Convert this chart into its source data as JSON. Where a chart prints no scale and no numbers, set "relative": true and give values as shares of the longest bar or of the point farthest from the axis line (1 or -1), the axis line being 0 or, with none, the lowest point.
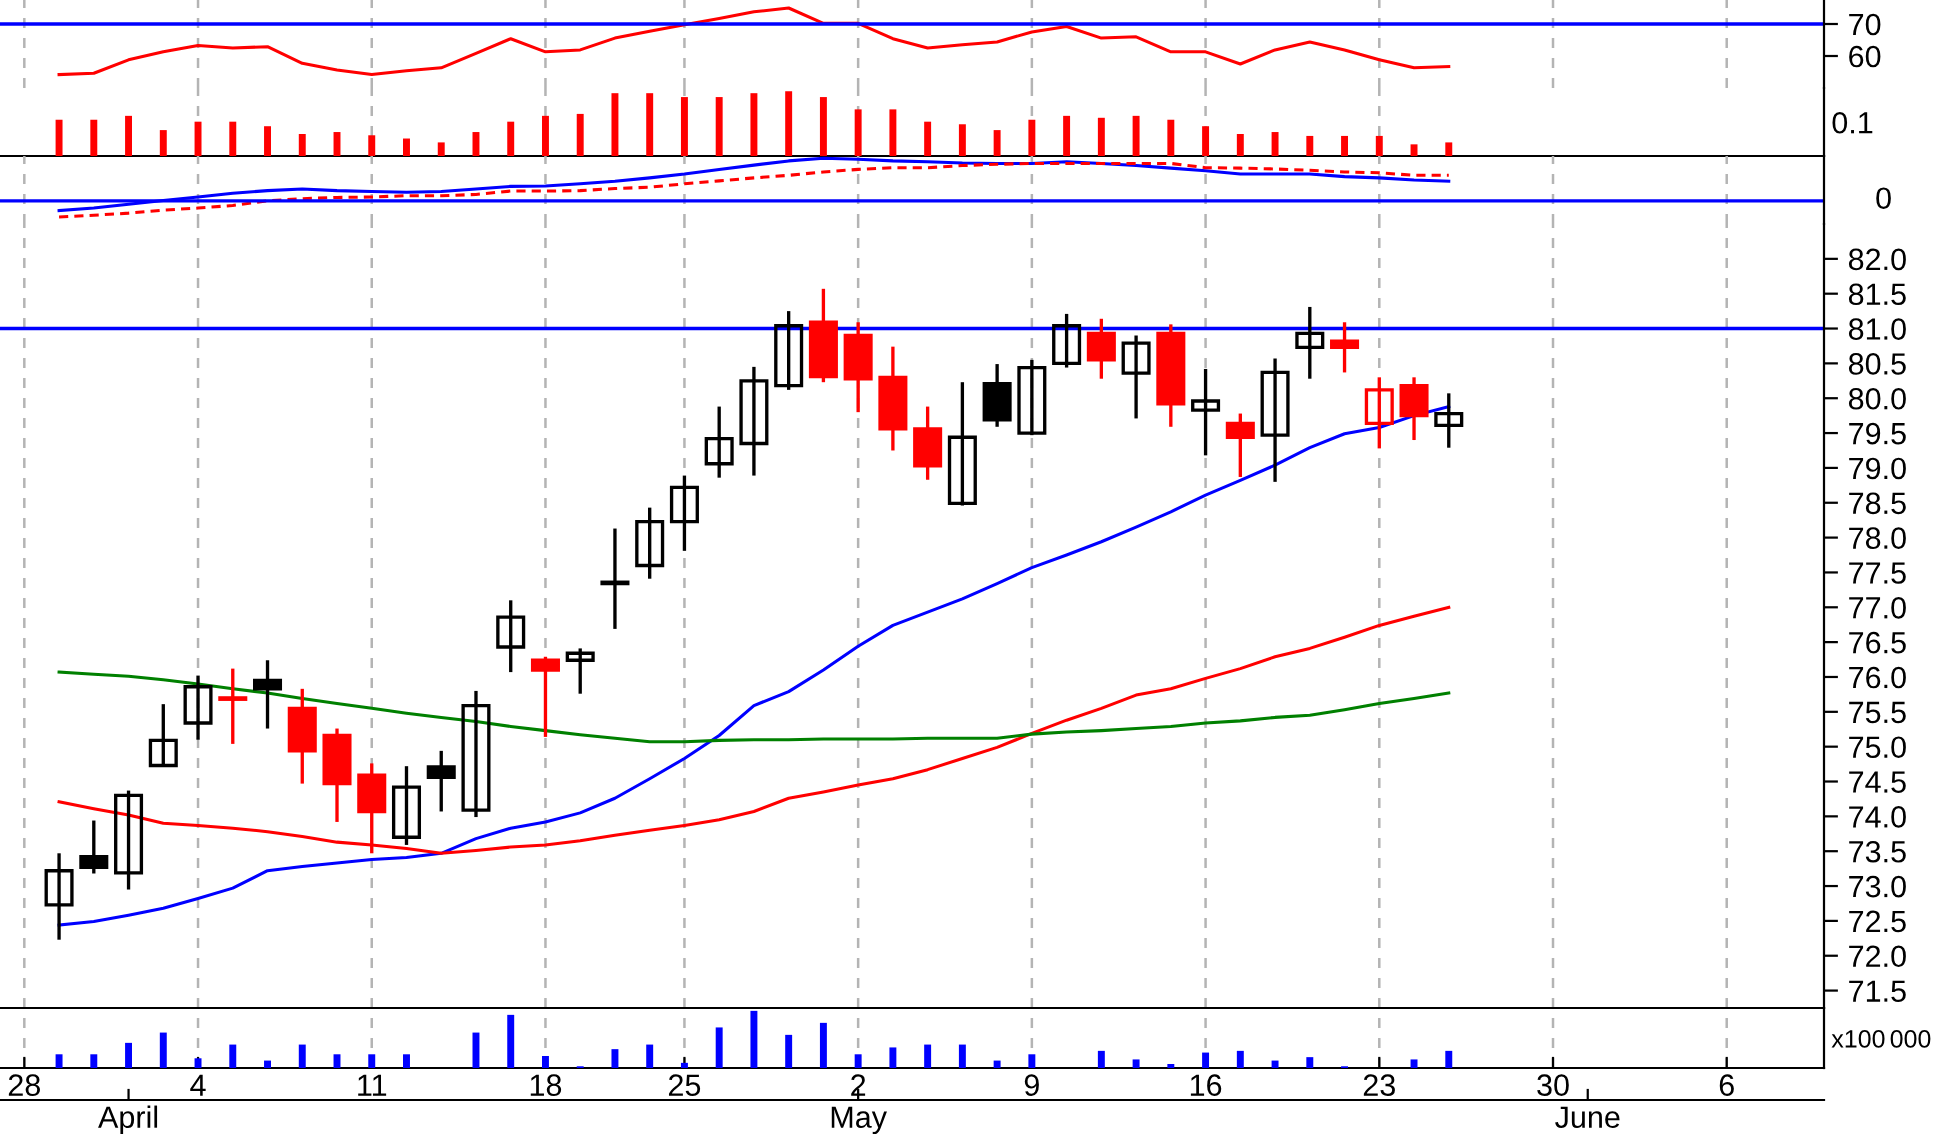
{
  "chart_data": [
    {
      "type": "line",
      "ylim": [
        50,
        77.5
      ],
      "yticks": [
        60,
        70
      ],
      "tick_labels": "y",
      "grid": "x",
      "categories": [
        "28",
        null,
        null,
        null,
        null,
        "4",
        null,
        null,
        null,
        null,
        "11",
        null,
        null,
        null,
        null,
        "18",
        null,
        null,
        null,
        "25",
        null,
        null,
        null,
        null,
        "2",
        null,
        null,
        null,
        null,
        "9",
        null,
        null,
        null,
        null,
        "16",
        null,
        null,
        null,
        null,
        "23",
        null,
        null,
        null,
        null,
        "30",
        null,
        null,
        null,
        null,
        "6",
        null,
        null,
        null
      ],
      "ref_lines": [
        {
          "axis": "y",
          "value": 70,
          "label": null,
          "color": "#0000ff"
        }
      ],
      "series": [
        {
          "color": "#ff0000",
          "values": [
            null,
            54.2,
            54.6,
            58.8,
            61.3,
            63.3,
            62.5,
            62.9,
            57.7,
            55.6,
            54.2,
            55.4,
            56.3,
            60.8,
            65.4,
            61.3,
            61.9,
            65.6,
            67.7,
            69.8,
            71.7,
            73.8,
            75.0,
            70.2,
            70.2,
            65.4,
            62.5,
            63.5,
            64.4,
            67.5,
            69.2,
            65.6,
            66.0,
            61.3,
            61.3,
            57.5,
            61.9,
            64.4,
            61.9,
            58.8,
            56.3,
            56.7,
            null,
            null,
            null,
            null,
            null,
            null,
            null,
            null,
            null,
            null,
            null
          ]
        }
      ]
    },
    {
      "type": "bar",
      "relative": true,
      "tick_labels": false,
      "grid": "x",
      "categories": [
        null,
        null,
        null,
        null,
        "4",
        null,
        null,
        null,
        null,
        "11",
        null,
        null,
        null,
        null,
        "18",
        null,
        null,
        null,
        "25",
        null,
        null,
        null,
        null,
        "2",
        null,
        null,
        null,
        null,
        "9",
        null,
        null,
        null,
        null,
        "16",
        null,
        null,
        null,
        null,
        "23",
        null,
        null
      ],
      "annotations": [
        "0.1"
      ],
      "series": [
        {
          "color": "#ff0000",
          "values": [
            0.56,
            0.56,
            0.62,
            0.4,
            0.53,
            0.53,
            0.46,
            0.34,
            0.37,
            0.32,
            0.27,
            0.21,
            0.37,
            0.53,
            0.62,
            0.65,
            0.97,
            0.97,
            0.91,
            0.91,
            0.97,
            1,
            0.91,
            0.72,
            0.72,
            0.53,
            0.49,
            0.4,
            0.56,
            0.62,
            0.59,
            0.62,
            0.56,
            0.46,
            0.34,
            0.37,
            0.31,
            0.31,
            0.31,
            0.18,
            0.21
          ]
        }
      ]
    },
    {
      "type": "line",
      "relative": true,
      "tick_labels": false,
      "grid": "x",
      "categories": [
        "28",
        null,
        null,
        null,
        null,
        "4",
        null,
        null,
        null,
        null,
        "11",
        null,
        null,
        null,
        null,
        "18",
        null,
        null,
        null,
        "25",
        null,
        null,
        null,
        null,
        "2",
        null,
        null,
        null,
        null,
        "9",
        null,
        null,
        null,
        null,
        "16",
        null,
        null,
        null,
        null,
        "23",
        null,
        null,
        null,
        null,
        "30",
        null,
        null,
        null,
        null,
        "6",
        null,
        null,
        null
      ],
      "ref_lines": [
        {
          "axis": "y",
          "value": 0,
          "label": "0",
          "color": "#0000ff"
        }
      ],
      "series": [
        {
          "color": "#0000ff",
          "line_style": "solid",
          "values": [
            null,
            -0.23,
            -0.17,
            -0.08,
            0.01,
            0.09,
            0.18,
            0.24,
            0.28,
            0.24,
            0.22,
            0.2,
            0.22,
            0.28,
            0.34,
            0.35,
            0.4,
            0.46,
            0.54,
            0.63,
            0.74,
            0.84,
            0.94,
            1,
            0.98,
            0.94,
            0.92,
            0.89,
            0.88,
            0.88,
            0.92,
            0.88,
            0.83,
            0.77,
            0.71,
            0.63,
            0.63,
            0.63,
            0.57,
            0.54,
            0.49,
            0.46,
            null,
            null,
            null,
            null,
            null,
            null,
            null,
            null,
            null,
            null,
            null
          ]
        },
        {
          "color": "#ff0000",
          "line_style": "dashed",
          "values": [
            null,
            -0.38,
            -0.34,
            -0.29,
            -0.22,
            -0.17,
            -0.11,
            0,
            0.05,
            0.08,
            0.09,
            0.12,
            0.12,
            0.15,
            0.23,
            0.23,
            0.24,
            0.29,
            0.32,
            0.4,
            0.47,
            0.54,
            0.6,
            0.68,
            0.74,
            0.78,
            0.78,
            0.83,
            0.86,
            0.88,
            0.88,
            0.88,
            0.88,
            0.88,
            0.78,
            0.77,
            0.75,
            0.72,
            0.68,
            0.66,
            0.6,
            0.6,
            null,
            null,
            null,
            null,
            null,
            null,
            null,
            null,
            null,
            null,
            null
          ]
        }
      ]
    },
    {
      "type": "candlestick",
      "ylim": [
        71.25,
        82.5
      ],
      "tick_labels": "y",
      "grid": "x",
      "yticks": [
        {
          "value": 71.5,
          "label": "71.5"
        },
        {
          "value": 72,
          "label": "72.0"
        },
        {
          "value": 72.5,
          "label": "72.5"
        },
        {
          "value": 73,
          "label": "73.0"
        },
        {
          "value": 73.5,
          "label": "73.5"
        },
        {
          "value": 74,
          "label": "74.0"
        },
        {
          "value": 74.5,
          "label": "74.5"
        },
        {
          "value": 75,
          "label": "75.0"
        },
        {
          "value": 75.5,
          "label": "75.5"
        },
        {
          "value": 76,
          "label": "76.0"
        },
        {
          "value": 76.5,
          "label": "76.5"
        },
        {
          "value": 77,
          "label": "77.0"
        },
        {
          "value": 77.5,
          "label": "77.5"
        },
        {
          "value": 78,
          "label": "78.0"
        },
        {
          "value": 78.5,
          "label": "78.5"
        },
        {
          "value": 79,
          "label": "79.0"
        },
        {
          "value": 79.5,
          "label": "79.5"
        },
        {
          "value": 80,
          "label": "80.0"
        },
        {
          "value": 80.5,
          "label": "80.5"
        },
        {
          "value": 81,
          "label": "81.0"
        },
        {
          "value": 81.5,
          "label": "81.5"
        },
        {
          "value": 82,
          "label": "82.0"
        }
      ],
      "categories": [
        "28",
        null,
        null,
        null,
        null,
        "4",
        null,
        null,
        null,
        null,
        "11",
        null,
        null,
        null,
        null,
        "18",
        null,
        null,
        null,
        "25",
        null,
        null,
        null,
        null,
        "2",
        null,
        null,
        null,
        null,
        "9",
        null,
        null,
        null,
        null,
        "16",
        null,
        null,
        null,
        null,
        "23",
        null,
        null,
        null,
        null,
        "30",
        null,
        null,
        null,
        null,
        "6",
        null,
        null,
        null
      ],
      "ohlc": [
        null,
        [
          72.73,
          73.47,
          72.23,
          73.22
        ],
        [
          73.42,
          73.94,
          73.18,
          73.27
        ],
        [
          73.19,
          74.37,
          72.95,
          74.3
        ],
        [
          74.73,
          75.61,
          74.73,
          75.09
        ],
        [
          75.34,
          76.02,
          75.1,
          75.86
        ],
        [
          75.7,
          76.12,
          75.04,
          75.68
        ],
        [
          75.95,
          76.24,
          75.26,
          75.83
        ],
        [
          75.55,
          75.83,
          74.47,
          74.94
        ],
        [
          75.16,
          75.26,
          73.92,
          74.47
        ],
        [
          74.59,
          74.76,
          73.47,
          74.07
        ],
        [
          73.7,
          74.72,
          73.59,
          74.42
        ],
        [
          74.71,
          74.94,
          74.07,
          74.56
        ],
        [
          74.09,
          75.8,
          73.99,
          75.59
        ],
        [
          76.43,
          77.1,
          76.07,
          76.86
        ],
        [
          76.24,
          76.29,
          75.14,
          76.1
        ],
        [
          76.24,
          76.41,
          75.76,
          76.34
        ],
        [
          77.34,
          78.13,
          76.69,
          77.34
        ],
        [
          77.6,
          78.43,
          77.41,
          78.23
        ],
        [
          78.23,
          78.89,
          77.81,
          78.72
        ],
        [
          79.06,
          79.88,
          78.86,
          79.42
        ],
        [
          79.35,
          80.45,
          78.89,
          80.25
        ],
        [
          80.18,
          81.25,
          80.12,
          81.04
        ],
        [
          81.09,
          81.57,
          80.23,
          80.31
        ],
        [
          80.9,
          81.09,
          79.8,
          80.28
        ],
        [
          80.3,
          80.74,
          79.25,
          79.56
        ],
        [
          79.56,
          79.88,
          78.83,
          79.03
        ],
        [
          78.49,
          80.23,
          78.46,
          79.44
        ],
        [
          80.21,
          80.49,
          79.59,
          79.69
        ],
        [
          79.5,
          80.55,
          79.47,
          80.44
        ],
        [
          80.5,
          81.21,
          80.44,
          81.04
        ],
        [
          80.93,
          81.14,
          80.28,
          80.55
        ],
        [
          80.36,
          80.9,
          79.71,
          80.79
        ],
        [
          80.93,
          81.06,
          79.59,
          79.92
        ],
        [
          79.83,
          80.42,
          79.18,
          79.96
        ],
        [
          79.64,
          79.78,
          78.87,
          79.44
        ],
        [
          79.47,
          80.57,
          78.8,
          80.37
        ],
        [
          80.73,
          81.31,
          80.28,
          80.93
        ],
        [
          80.82,
          81.09,
          80.37,
          80.73
        ],
        [
          79.64,
          80.3,
          79.28,
          80.12
        ],
        [
          80.18,
          80.3,
          79.4,
          79.75
        ],
        [
          79.61,
          80.07,
          79.29,
          79.78
        ],
        null,
        null,
        null,
        null,
        null,
        null,
        null,
        null,
        null,
        null,
        null
      ],
      "colors": [
        null,
        "#000000",
        "#000000",
        "#000000",
        "#000000",
        "#000000",
        "#ff0000",
        "#000000",
        "#ff0000",
        "#ff0000",
        "#ff0000",
        "#000000",
        "#000000",
        "#000000",
        "#000000",
        "#ff0000",
        "#000000",
        "#000000",
        "#000000",
        "#000000",
        "#000000",
        "#000000",
        "#000000",
        "#ff0000",
        "#ff0000",
        "#ff0000",
        "#ff0000",
        "#000000",
        "#000000",
        "#000000",
        "#000000",
        "#ff0000",
        "#000000",
        "#ff0000",
        "#000000",
        "#ff0000",
        "#000000",
        "#000000",
        "#ff0000",
        "#ff0000",
        "#ff0000",
        "#000000",
        null,
        null,
        null,
        null,
        null,
        null,
        null,
        null,
        null,
        null,
        null
      ],
      "ref_lines": [
        {
          "axis": "y",
          "value": 81,
          "label": null,
          "color": "#0000ff"
        }
      ],
      "series": [
        {
          "type": "line",
          "color": "#0000ff",
          "values": [
            null,
            72.44,
            72.49,
            72.58,
            72.68,
            72.82,
            72.97,
            73.22,
            73.28,
            73.33,
            73.38,
            73.41,
            73.47,
            73.68,
            73.83,
            73.92,
            74.05,
            74.26,
            74.54,
            74.83,
            75.16,
            75.59,
            75.79,
            76.1,
            76.44,
            76.74,
            76.93,
            77.12,
            77.34,
            77.57,
            77.75,
            77.94,
            78.15,
            78.37,
            78.61,
            78.82,
            79.04,
            79.29,
            79.49,
            79.58,
            79.75,
            79.88,
            null,
            null,
            null,
            null,
            null,
            null,
            null,
            null,
            null,
            null,
            null
          ]
        },
        {
          "type": "line",
          "color": "#ff0000",
          "values": [
            null,
            74.21,
            74.11,
            74.02,
            73.9,
            73.87,
            73.83,
            73.78,
            73.71,
            73.63,
            73.59,
            73.54,
            73.47,
            73.51,
            73.56,
            73.59,
            73.65,
            73.73,
            73.8,
            73.87,
            73.95,
            74.07,
            74.26,
            74.35,
            74.45,
            74.54,
            74.67,
            74.83,
            74.99,
            75.19,
            75.38,
            75.55,
            75.74,
            75.83,
            75.98,
            76.12,
            76.29,
            76.41,
            76.57,
            76.74,
            76.87,
            77.0,
            null,
            null,
            null,
            null,
            null,
            null,
            null,
            null,
            null,
            null,
            null
          ]
        },
        {
          "type": "line",
          "color": "#008000",
          "values": [
            null,
            76.07,
            76.04,
            76.01,
            75.96,
            75.9,
            75.83,
            75.77,
            75.69,
            75.62,
            75.55,
            75.48,
            75.42,
            75.36,
            75.29,
            75.23,
            75.17,
            75.12,
            75.07,
            75.07,
            75.09,
            75.1,
            75.1,
            75.11,
            75.11,
            75.11,
            75.12,
            75.12,
            75.12,
            75.18,
            75.21,
            75.23,
            75.26,
            75.29,
            75.34,
            75.37,
            75.42,
            75.45,
            75.53,
            75.62,
            75.69,
            75.77,
            null,
            null,
            null,
            null,
            null,
            null,
            null,
            null,
            null,
            null,
            null
          ]
        }
      ]
    },
    {
      "type": "bar",
      "relative": true,
      "tick_labels": "x",
      "grid": "x",
      "categories": [
        "28",
        null,
        null,
        null,
        null,
        "4",
        null,
        null,
        null,
        null,
        "11",
        null,
        null,
        null,
        null,
        "18",
        null,
        null,
        null,
        "25",
        null,
        null,
        null,
        null,
        "2",
        null,
        null,
        null,
        null,
        "9",
        null,
        null,
        null,
        null,
        "16",
        null,
        null,
        null,
        null,
        "23",
        null,
        null,
        null,
        null,
        "30",
        null,
        null,
        null,
        null,
        "6",
        null,
        null,
        null
      ],
      "annotations": [
        "x100",
        "000"
      ],
      "series": [
        {
          "color": "#0000ff",
          "values": [
            null,
            0.24,
            0.24,
            0.44,
            0.62,
            0.17,
            0.41,
            0.13,
            0.41,
            0.24,
            0.24,
            0.24,
            0,
            0.62,
            0.93,
            0.21,
            0.03,
            0.33,
            0.41,
            0.09,
            0.71,
            1,
            0.58,
            0.79,
            0.24,
            0.36,
            0.41,
            0.41,
            0.13,
            0.24,
            0,
            0.3,
            0.15,
            0.07,
            0.27,
            0.3,
            0.13,
            0.19,
            0.03,
            0,
            0.15,
            0.3,
            null,
            null,
            null,
            null,
            null,
            null,
            null,
            null,
            null,
            null,
            null
          ]
        }
      ]
    },
    {
      "type": "other",
      "categories": [
        null,
        null,
        null,
        "April",
        null,
        null,
        null,
        null,
        null,
        null,
        null,
        null,
        null,
        null,
        null,
        null,
        null,
        null,
        null,
        null,
        null,
        null,
        null,
        null,
        "May",
        null,
        null,
        null,
        null,
        null,
        null,
        null,
        null,
        null,
        null,
        null,
        null,
        null,
        null,
        null,
        null,
        null,
        null,
        null,
        null,
        "June",
        null,
        null,
        null,
        null,
        null,
        null,
        null
      ]
    }
  ]
}
